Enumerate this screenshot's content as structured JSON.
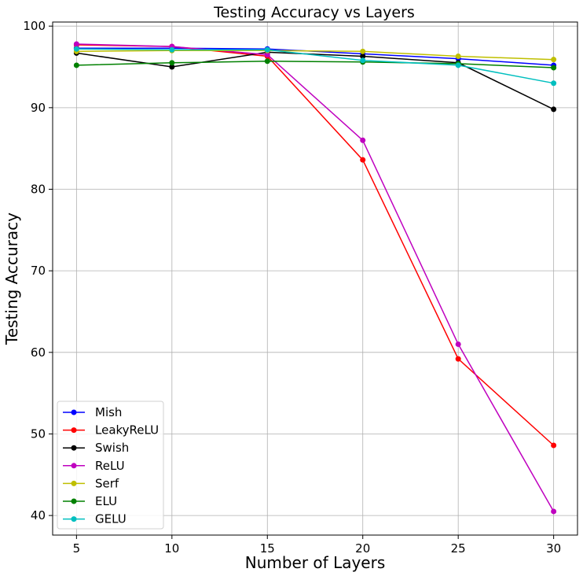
{
  "chart_data": {
    "type": "line",
    "title": "Testing Accuracy vs Layers",
    "xlabel": "Number of Layers",
    "ylabel": "Testing Accuracy",
    "x": [
      5,
      10,
      15,
      20,
      25,
      30
    ],
    "xticks": [
      "5",
      "10",
      "15",
      "20",
      "25",
      "30"
    ],
    "yticks": [
      "40",
      "50",
      "60",
      "70",
      "80",
      "90",
      "100"
    ],
    "xlim": [
      3.75,
      31.25
    ],
    "ylim": [
      37.6,
      100.5
    ],
    "grid": true,
    "legend_position": "lower-left",
    "series": [
      {
        "name": "Mish",
        "color": "#0000ff",
        "values": [
          97.3,
          97.3,
          97.2,
          96.6,
          96.0,
          95.2
        ]
      },
      {
        "name": "LeakyReLU",
        "color": "#ff0000",
        "values": [
          97.7,
          97.5,
          96.3,
          83.6,
          59.2,
          48.6
        ]
      },
      {
        "name": "Swish",
        "color": "#000000",
        "values": [
          96.7,
          95.0,
          96.8,
          96.3,
          95.5,
          89.8
        ]
      },
      {
        "name": "ReLU",
        "color": "#bf00bf",
        "values": [
          97.8,
          97.5,
          96.5,
          86.0,
          61.0,
          40.5
        ]
      },
      {
        "name": "Serf",
        "color": "#bfbf00",
        "values": [
          96.9,
          97.0,
          97.0,
          96.9,
          96.3,
          95.9
        ]
      },
      {
        "name": "ELU",
        "color": "#008000",
        "values": [
          95.2,
          95.5,
          95.7,
          95.6,
          95.4,
          94.9
        ]
      },
      {
        "name": "GELU",
        "color": "#00bfbf",
        "values": [
          97.2,
          97.1,
          97.1,
          95.8,
          95.2,
          93.0
        ]
      }
    ]
  }
}
